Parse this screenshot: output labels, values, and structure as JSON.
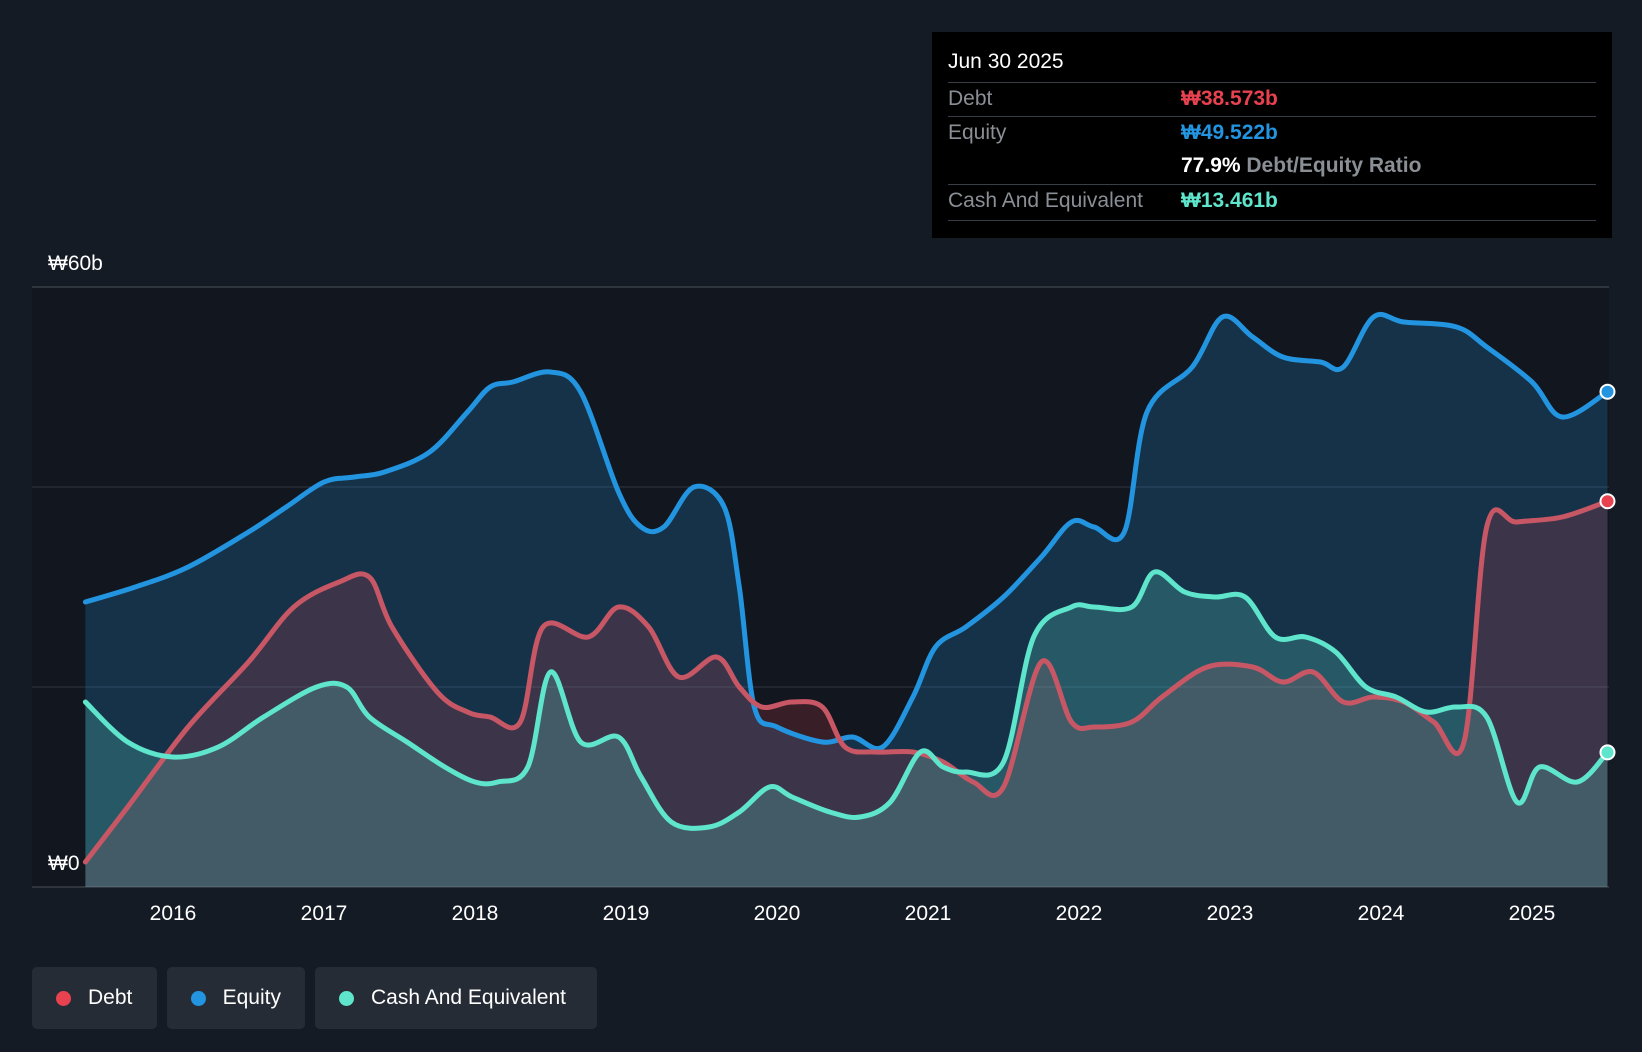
{
  "chart_data": {
    "type": "area",
    "title": "",
    "xlabel": "",
    "ylabel": "",
    "ylim": [
      0,
      60
    ],
    "y_tick_labels": {
      "top": "₩60b",
      "bottom": "₩0"
    },
    "x_ticks": [
      2016,
      2017,
      2018,
      2019,
      2020,
      2021,
      2022,
      2023,
      2024,
      2025
    ],
    "x_range": [
      2015.0,
      2025.5
    ],
    "series": [
      {
        "name": "Equity",
        "color": "#2394df",
        "points": [
          [
            2015.42,
            28.5
          ],
          [
            2015.75,
            30.0
          ],
          [
            2016.1,
            32.0
          ],
          [
            2016.5,
            35.5
          ],
          [
            2016.75,
            38.0
          ],
          [
            2017.0,
            40.5
          ],
          [
            2017.2,
            41.0
          ],
          [
            2017.4,
            41.5
          ],
          [
            2017.7,
            43.5
          ],
          [
            2017.95,
            47.5
          ],
          [
            2018.1,
            50.0
          ],
          [
            2018.25,
            50.5
          ],
          [
            2018.5,
            51.5
          ],
          [
            2018.7,
            49.5
          ],
          [
            2018.95,
            39.5
          ],
          [
            2019.1,
            36.0
          ],
          [
            2019.25,
            36.0
          ],
          [
            2019.45,
            40.0
          ],
          [
            2019.65,
            38.0
          ],
          [
            2019.75,
            30.0
          ],
          [
            2019.85,
            18.0
          ],
          [
            2020.0,
            16.0
          ],
          [
            2020.3,
            14.5
          ],
          [
            2020.5,
            15.0
          ],
          [
            2020.7,
            14.0
          ],
          [
            2020.9,
            19.0
          ],
          [
            2021.05,
            24.0
          ],
          [
            2021.25,
            26.0
          ],
          [
            2021.5,
            29.0
          ],
          [
            2021.75,
            33.0
          ],
          [
            2021.95,
            36.5
          ],
          [
            2022.1,
            36.0
          ],
          [
            2022.3,
            35.5
          ],
          [
            2022.45,
            47.5
          ],
          [
            2022.75,
            52.0
          ],
          [
            2022.95,
            57.0
          ],
          [
            2023.15,
            55.0
          ],
          [
            2023.35,
            53.0
          ],
          [
            2023.6,
            52.5
          ],
          [
            2023.75,
            52.0
          ],
          [
            2023.95,
            57.0
          ],
          [
            2024.15,
            56.5
          ],
          [
            2024.5,
            56.0
          ],
          [
            2024.7,
            54.0
          ],
          [
            2025.0,
            50.5
          ],
          [
            2025.2,
            47.0
          ],
          [
            2025.5,
            49.522
          ]
        ]
      },
      {
        "name": "Debt",
        "color": "#e8414f",
        "points": [
          [
            2015.42,
            2.5
          ],
          [
            2015.7,
            8.0
          ],
          [
            2016.1,
            16.0
          ],
          [
            2016.5,
            22.5
          ],
          [
            2016.8,
            28.0
          ],
          [
            2017.1,
            30.5
          ],
          [
            2017.3,
            31.0
          ],
          [
            2017.45,
            26.0
          ],
          [
            2017.75,
            19.5
          ],
          [
            2017.95,
            17.5
          ],
          [
            2018.1,
            17.0
          ],
          [
            2018.3,
            16.5
          ],
          [
            2018.45,
            26.0
          ],
          [
            2018.75,
            25.0
          ],
          [
            2018.95,
            28.0
          ],
          [
            2019.15,
            26.0
          ],
          [
            2019.35,
            21.0
          ],
          [
            2019.6,
            23.0
          ],
          [
            2019.75,
            20.0
          ],
          [
            2019.9,
            18.0
          ],
          [
            2020.1,
            18.5
          ],
          [
            2020.3,
            18.0
          ],
          [
            2020.45,
            14.0
          ],
          [
            2020.65,
            13.5
          ],
          [
            2020.9,
            13.5
          ],
          [
            2021.1,
            12.5
          ],
          [
            2021.3,
            10.5
          ],
          [
            2021.5,
            10.0
          ],
          [
            2021.75,
            22.5
          ],
          [
            2021.95,
            16.5
          ],
          [
            2022.1,
            16.0
          ],
          [
            2022.35,
            16.5
          ],
          [
            2022.55,
            19.0
          ],
          [
            2022.85,
            22.0
          ],
          [
            2023.15,
            22.0
          ],
          [
            2023.35,
            20.5
          ],
          [
            2023.55,
            21.5
          ],
          [
            2023.75,
            18.5
          ],
          [
            2023.95,
            19.0
          ],
          [
            2024.15,
            18.5
          ],
          [
            2024.35,
            16.5
          ],
          [
            2024.55,
            14.5
          ],
          [
            2024.7,
            36.0
          ],
          [
            2024.9,
            36.5
          ],
          [
            2025.2,
            37.0
          ],
          [
            2025.5,
            38.573
          ]
        ]
      },
      {
        "name": "Cash And Equivalent",
        "color": "#5ee5cc",
        "points": [
          [
            2015.42,
            18.5
          ],
          [
            2015.7,
            14.5
          ],
          [
            2016.0,
            13.0
          ],
          [
            2016.3,
            14.0
          ],
          [
            2016.6,
            17.0
          ],
          [
            2016.95,
            20.0
          ],
          [
            2017.15,
            20.0
          ],
          [
            2017.3,
            17.0
          ],
          [
            2017.55,
            14.5
          ],
          [
            2017.8,
            12.0
          ],
          [
            2018.0,
            10.5
          ],
          [
            2018.15,
            10.5
          ],
          [
            2018.35,
            12.0
          ],
          [
            2018.5,
            21.5
          ],
          [
            2018.7,
            14.5
          ],
          [
            2018.95,
            15.0
          ],
          [
            2019.1,
            11.0
          ],
          [
            2019.3,
            6.5
          ],
          [
            2019.55,
            6.0
          ],
          [
            2019.75,
            7.5
          ],
          [
            2019.95,
            10.0
          ],
          [
            2020.1,
            9.0
          ],
          [
            2020.35,
            7.5
          ],
          [
            2020.55,
            7.0
          ],
          [
            2020.75,
            8.5
          ],
          [
            2020.95,
            13.5
          ],
          [
            2021.1,
            12.0
          ],
          [
            2021.25,
            11.5
          ],
          [
            2021.5,
            12.5
          ],
          [
            2021.7,
            25.0
          ],
          [
            2021.95,
            28.0
          ],
          [
            2022.1,
            28.0
          ],
          [
            2022.35,
            28.0
          ],
          [
            2022.5,
            31.5
          ],
          [
            2022.7,
            29.5
          ],
          [
            2022.9,
            29.0
          ],
          [
            2023.1,
            29.0
          ],
          [
            2023.3,
            25.0
          ],
          [
            2023.5,
            25.0
          ],
          [
            2023.7,
            23.5
          ],
          [
            2023.9,
            20.0
          ],
          [
            2024.1,
            19.0
          ],
          [
            2024.3,
            17.5
          ],
          [
            2024.5,
            18.0
          ],
          [
            2024.7,
            17.0
          ],
          [
            2024.9,
            8.5
          ],
          [
            2025.05,
            12.0
          ],
          [
            2025.3,
            10.5
          ],
          [
            2025.5,
            13.461
          ]
        ]
      }
    ],
    "tooltip": {
      "date": "Jun 30 2025",
      "rows": [
        {
          "label": "Debt",
          "value": "₩38.573b",
          "color": "#e8414f"
        },
        {
          "label": "Equity",
          "value": "₩49.522b",
          "color": "#2394df"
        },
        {
          "label": "",
          "value": "77.9%",
          "suffix": "Debt/Equity Ratio",
          "color": "#ffffff"
        },
        {
          "label": "Cash And Equivalent",
          "value": "₩13.461b",
          "color": "#5ee5cc"
        }
      ]
    },
    "legend": [
      {
        "label": "Debt",
        "color": "#e8414f"
      },
      {
        "label": "Equity",
        "color": "#2394df"
      },
      {
        "label": "Cash And Equivalent",
        "color": "#5ee5cc"
      }
    ]
  }
}
